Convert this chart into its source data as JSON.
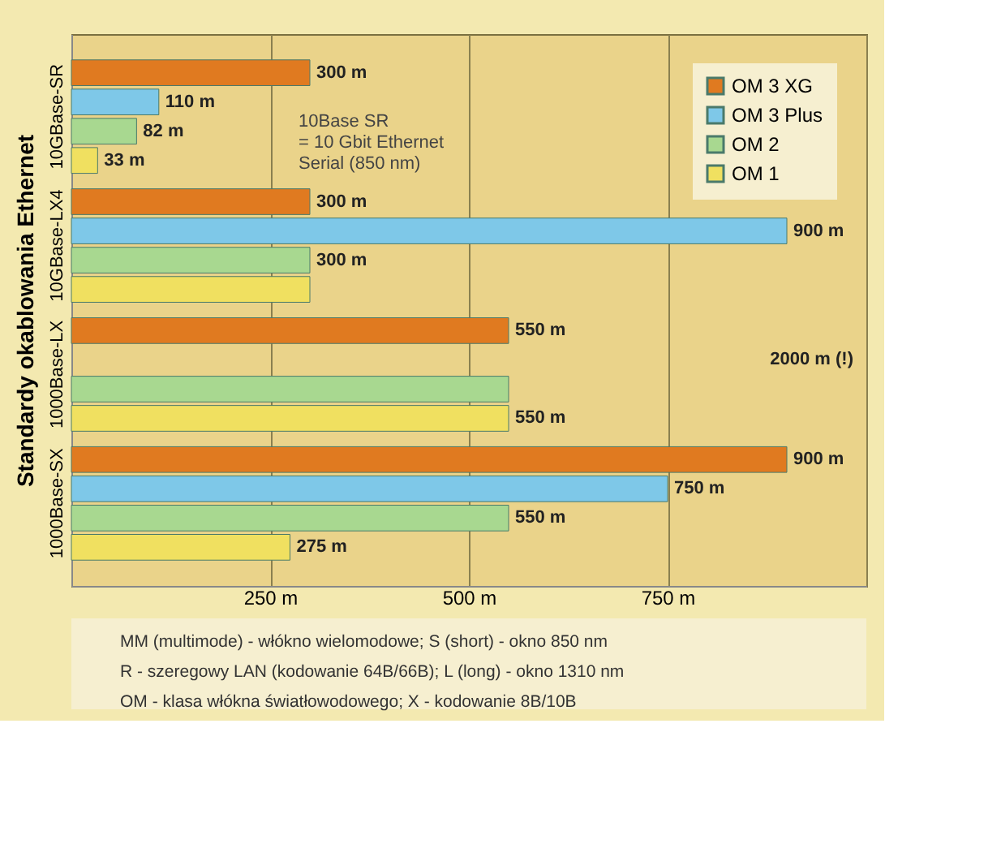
{
  "chart_data": {
    "type": "bar",
    "orientation": "horizontal",
    "ylabel": "Standardy okablowania Ethernet",
    "categories": [
      "10GBase-SR",
      "10GBase-LX4",
      "1000Base-LX",
      "1000Base-SX"
    ],
    "series": [
      {
        "name": "OM 3 XG",
        "color": "#e07a20",
        "values": [
          300,
          300,
          550,
          900
        ],
        "value_labels": [
          "300 m",
          "300 m",
          "550 m",
          "900 m"
        ]
      },
      {
        "name": "OM 3 Plus",
        "color": "#7ec8e8",
        "values": [
          110,
          900,
          null,
          750
        ],
        "value_labels": [
          "110 m",
          "900 m",
          null,
          "750 m"
        ]
      },
      {
        "name": "OM 2",
        "color": "#a8d890",
        "values": [
          82,
          300,
          550,
          550
        ],
        "value_labels": [
          "82 m",
          "300 m",
          null,
          "550 m"
        ]
      },
      {
        "name": "OM 1",
        "color": "#f0e060",
        "values": [
          33,
          300,
          550,
          275
        ],
        "value_labels": [
          "33 m",
          null,
          "550 m",
          "275 m"
        ]
      }
    ],
    "xlim": [
      0,
      1000
    ],
    "xticks": [
      {
        "value": 0,
        "label": null
      },
      {
        "value": 250,
        "label": "250 m"
      },
      {
        "value": 500,
        "label": "500 m"
      },
      {
        "value": 750,
        "label": "750 m"
      },
      {
        "value": 1000,
        "label": null
      }
    ],
    "grid": "x",
    "legend": "top right",
    "annotations": [
      "2000 m (!)",
      "10Base SR\n= 10 Gbit Ethernet\nSerial (850 nm)",
      "MM (multimode) - włókno wielomodowe;      S (short) - okno 850 nm",
      "R - szeregowy LAN (kodowanie 64B/66B);    L (long) - okno 1310 nm",
      "OM - klasa włókna światłowodowego;     X - kodowanie 8B/10B"
    ]
  }
}
